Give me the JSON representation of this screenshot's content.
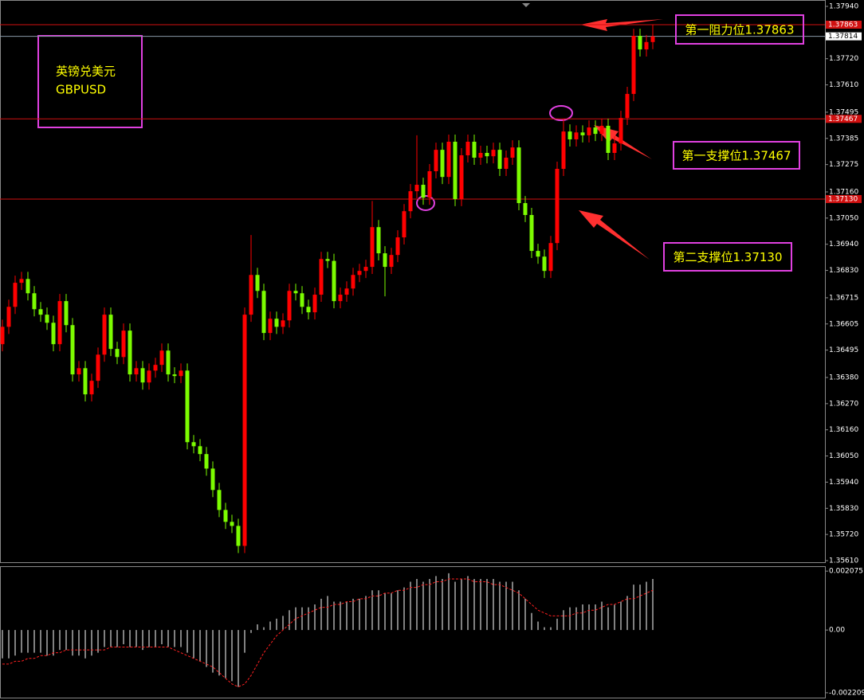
{
  "chart_data": [
    {
      "type": "candlestick",
      "title": "英镑兑美元",
      "subtitle": "GBPUSD",
      "up_color": "#ff0000",
      "down_color": "#7cfc00",
      "open": [
        1.3652,
        1.36593,
        1.36677,
        1.36778,
        1.36794,
        1.36734,
        1.36667,
        1.36644,
        1.3661,
        1.3652,
        1.36701,
        1.366,
        1.36393,
        1.36419,
        1.36309,
        1.36366,
        1.36476,
        1.36644,
        1.365,
        1.36466,
        1.36577,
        1.36393,
        1.36419,
        1.36359,
        1.36409,
        1.36433,
        1.36493,
        1.36393,
        1.36386,
        1.36409,
        1.36108,
        1.36091,
        1.36058,
        1.35997,
        1.35907,
        1.35823,
        1.35773,
        1.35756,
        1.35672,
        1.36644,
        1.36811,
        1.36744,
        1.36567,
        1.36627,
        1.36593,
        1.3662,
        1.36744,
        1.36734,
        1.36677,
        1.36654,
        1.36728,
        1.36878,
        1.3687,
        1.36701,
        1.36728,
        1.36754,
        1.36811,
        1.36828,
        1.36845,
        1.37012,
        1.36902,
        1.36845,
        1.36895,
        1.36969,
        1.37079,
        1.37163,
        1.3719,
        1.37136,
        1.37247,
        1.37337,
        1.37223,
        1.37371,
        1.3713,
        1.37314,
        1.37371,
        1.37304,
        1.37324,
        1.3731,
        1.37337,
        1.37257,
        1.37304,
        1.37347,
        1.37113,
        1.37063,
        1.36912,
        1.36888,
        1.36828,
        1.36945,
        1.37257,
        1.37414,
        1.37381,
        1.3741,
        1.37398,
        1.37431,
        1.37404,
        1.37438,
        1.37324,
        1.37364,
        1.37471,
        1.37572,
        1.37816,
        1.37759,
        1.3779
      ],
      "high": [
        1.36623,
        1.36707,
        1.36808,
        1.36824,
        1.36824,
        1.36764,
        1.36697,
        1.36674,
        1.3664,
        1.36731,
        1.36731,
        1.3663,
        1.36449,
        1.36449,
        1.36396,
        1.36506,
        1.36674,
        1.36674,
        1.3653,
        1.36607,
        1.36607,
        1.36449,
        1.36449,
        1.36439,
        1.36463,
        1.36523,
        1.36523,
        1.36423,
        1.36439,
        1.36439,
        1.36138,
        1.36121,
        1.36088,
        1.36027,
        1.35937,
        1.35853,
        1.35803,
        1.35786,
        1.36674,
        1.36979,
        1.36841,
        1.36774,
        1.36657,
        1.36657,
        1.3665,
        1.36774,
        1.36774,
        1.36764,
        1.36707,
        1.36758,
        1.36908,
        1.36908,
        1.369,
        1.36758,
        1.36784,
        1.36841,
        1.36858,
        1.36875,
        1.37122,
        1.37042,
        1.36932,
        1.36925,
        1.36999,
        1.37109,
        1.37193,
        1.37398,
        1.3722,
        1.37277,
        1.37367,
        1.37367,
        1.37401,
        1.37401,
        1.37344,
        1.37401,
        1.37401,
        1.37354,
        1.37354,
        1.37367,
        1.37367,
        1.37334,
        1.37377,
        1.37377,
        1.37143,
        1.37093,
        1.36942,
        1.36918,
        1.36975,
        1.37287,
        1.37467,
        1.37444,
        1.3744,
        1.3744,
        1.37461,
        1.37461,
        1.37468,
        1.37468,
        1.37394,
        1.37501,
        1.37602,
        1.37846,
        1.37846,
        1.3782,
        1.37863
      ],
      "low": [
        1.3649,
        1.36563,
        1.36647,
        1.36748,
        1.36704,
        1.36637,
        1.36614,
        1.3658,
        1.3649,
        1.3649,
        1.3657,
        1.36363,
        1.36363,
        1.36279,
        1.36279,
        1.36336,
        1.36446,
        1.3647,
        1.36436,
        1.36436,
        1.36363,
        1.36363,
        1.36329,
        1.36329,
        1.36379,
        1.36403,
        1.36363,
        1.36356,
        1.36356,
        1.36078,
        1.36061,
        1.36028,
        1.35967,
        1.35877,
        1.35793,
        1.35743,
        1.35726,
        1.35642,
        1.35642,
        1.36614,
        1.36714,
        1.36537,
        1.36537,
        1.36563,
        1.36563,
        1.3659,
        1.36704,
        1.36647,
        1.36624,
        1.36624,
        1.36698,
        1.3684,
        1.36671,
        1.36671,
        1.36698,
        1.36724,
        1.36781,
        1.36798,
        1.36815,
        1.36872,
        1.36721,
        1.36815,
        1.36865,
        1.36939,
        1.37049,
        1.37133,
        1.37106,
        1.37106,
        1.37217,
        1.37193,
        1.37193,
        1.371,
        1.371,
        1.37284,
        1.37274,
        1.37274,
        1.3728,
        1.3728,
        1.37227,
        1.37227,
        1.37274,
        1.37083,
        1.37033,
        1.36882,
        1.36858,
        1.36798,
        1.36798,
        1.36915,
        1.37227,
        1.37351,
        1.37351,
        1.37368,
        1.37368,
        1.37374,
        1.37374,
        1.37294,
        1.37294,
        1.37334,
        1.37441,
        1.37542,
        1.37729,
        1.37729,
        1.3776
      ],
      "close": [
        1.36593,
        1.36677,
        1.36778,
        1.36794,
        1.36734,
        1.36667,
        1.36644,
        1.3661,
        1.3652,
        1.36701,
        1.366,
        1.36393,
        1.36419,
        1.36309,
        1.36366,
        1.36476,
        1.36644,
        1.365,
        1.36466,
        1.36577,
        1.36393,
        1.36419,
        1.36359,
        1.36409,
        1.36433,
        1.36493,
        1.36393,
        1.36386,
        1.36409,
        1.36108,
        1.36091,
        1.36058,
        1.35997,
        1.35907,
        1.35823,
        1.35773,
        1.35756,
        1.35672,
        1.36644,
        1.36811,
        1.36744,
        1.36567,
        1.36627,
        1.36593,
        1.3662,
        1.36744,
        1.36734,
        1.36677,
        1.36654,
        1.36728,
        1.36878,
        1.3687,
        1.36701,
        1.36728,
        1.36754,
        1.36811,
        1.36828,
        1.36845,
        1.37012,
        1.36902,
        1.36845,
        1.36895,
        1.36969,
        1.37079,
        1.37163,
        1.3719,
        1.37136,
        1.37247,
        1.37337,
        1.37223,
        1.37371,
        1.3713,
        1.37314,
        1.37371,
        1.37304,
        1.37324,
        1.3731,
        1.37337,
        1.37257,
        1.37304,
        1.37347,
        1.37113,
        1.37063,
        1.36912,
        1.36888,
        1.36828,
        1.36945,
        1.37257,
        1.37414,
        1.37381,
        1.3741,
        1.37398,
        1.37431,
        1.37404,
        1.37438,
        1.37324,
        1.37364,
        1.37471,
        1.37572,
        1.37816,
        1.37759,
        1.3779,
        1.37814
      ],
      "ylim": [
        1.3561,
        1.3794
      ],
      "yticks": [
        {
          "value": 1.3794,
          "label": "1.37940"
        },
        {
          "value": 1.3772,
          "label": "1.37720"
        },
        {
          "value": 1.3761,
          "label": "1.37610"
        },
        1.37495,
        1.37385,
        1.37275,
        {
          "value": 1.3716,
          "label": "1.37160"
        },
        {
          "value": 1.3705,
          "label": "1.37050"
        },
        {
          "value": 1.3694,
          "label": "1.36940"
        },
        {
          "value": 1.3683,
          "label": "1.36830"
        },
        1.36715,
        1.36605,
        1.36495,
        {
          "value": 1.3638,
          "label": "1.36380"
        },
        {
          "value": 1.3627,
          "label": "1.36270"
        },
        {
          "value": 1.3616,
          "label": "1.36160"
        },
        {
          "value": 1.3605,
          "label": "1.36050"
        },
        {
          "value": 1.3594,
          "label": "1.35940"
        },
        {
          "value": 1.3583,
          "label": "1.35830"
        },
        {
          "value": 1.3572,
          "label": "1.35720"
        },
        {
          "value": 1.3561,
          "label": "1.35610"
        }
      ],
      "levels": [
        1.37863,
        1.37467,
        {
          "value": 1.3713,
          "label": "1.37130"
        }
      ],
      "level_color": "#d01010",
      "current_price": 1.37814,
      "annotations": [
        "第一阻力位1.37863",
        "第一支撑位1.37467",
        "第二支撑位1.37130"
      ]
    },
    {
      "type": "macd",
      "series": [
        {
          "color": "#ffffff",
          "values": [
            -0.001,
            -0.001,
            -0.0009,
            -0.0008,
            -0.0008,
            -0.0008,
            -0.0008,
            -0.0009,
            -0.0009,
            -0.0007,
            -0.0007,
            -0.0009,
            -0.0009,
            -0.001,
            -0.0009,
            -0.0008,
            -0.0006,
            -0.0006,
            -0.0006,
            -0.0005,
            -0.0006,
            -0.0006,
            -0.0007,
            -0.0006,
            -0.0006,
            -0.0005,
            -0.0006,
            -0.0006,
            -0.0006,
            -0.0008,
            -0.001,
            -0.0011,
            -0.0013,
            -0.0015,
            -0.0016,
            -0.0017,
            -0.0018,
            -0.002,
            -0.0008,
            -0.0001,
            0.0002,
            0.0001,
            0.0003,
            0.0004,
            0.0005,
            0.0007,
            0.0008,
            0.0008,
            0.0008,
            0.0009,
            0.0011,
            0.0012,
            0.001,
            0.001,
            0.001,
            0.0011,
            0.0011,
            0.0012,
            0.0014,
            0.0014,
            0.0013,
            0.0013,
            0.0014,
            0.0015,
            0.0017,
            0.0018,
            0.0017,
            0.0018,
            0.0019,
            0.0018,
            0.002,
            0.0017,
            0.0018,
            0.0019,
            0.0018,
            0.0018,
            0.0018,
            0.0018,
            0.0017,
            0.0017,
            0.0017,
            0.0014,
            0.0011,
            0.0006,
            0.0003,
            0.0001,
            0.0001,
            0.0004,
            0.0007,
            0.0008,
            0.0008,
            0.0009,
            0.0009,
            0.0009,
            0.001,
            0.0008,
            0.0009,
            0.001,
            0.0012,
            0.0016,
            0.0016,
            0.0017,
            0.0018
          ]
        },
        {
          "color": "#ff2020",
          "dashed": true,
          "values": [
            -0.0012,
            -0.0012,
            -0.0011,
            -0.0011,
            -0.001,
            -0.001,
            -0.0009,
            -0.0009,
            -0.0008,
            -0.0008,
            -0.0007,
            -0.0007,
            -0.0007,
            -0.0007,
            -0.0007,
            -0.0007,
            -0.0007,
            -0.0006,
            -0.0006,
            -0.0006,
            -0.0006,
            -0.0006,
            -0.0006,
            -0.0006,
            -0.0006,
            -0.0006,
            -0.0006,
            -0.0007,
            -0.0008,
            -0.0009,
            -0.001,
            -0.0011,
            -0.0012,
            -0.0013,
            -0.0015,
            -0.0017,
            -0.0019,
            -0.002,
            -0.0019,
            -0.0016,
            -0.0012,
            -0.0008,
            -0.0005,
            -0.0002,
            0,
            0.0002,
            0.0004,
            0.0005,
            0.0006,
            0.0007,
            0.0008,
            0.0008,
            0.0009,
            0.0009,
            0.001,
            0.001,
            0.0011,
            0.0011,
            0.0012,
            0.0012,
            0.0013,
            0.0013,
            0.0014,
            0.0014,
            0.0015,
            0.0015,
            0.0016,
            0.0016,
            0.0017,
            0.0017,
            0.0018,
            0.0018,
            0.0018,
            0.0018,
            0.0017,
            0.0017,
            0.0017,
            0.0016,
            0.0016,
            0.0015,
            0.0014,
            0.0013,
            0.0011,
            0.0009,
            0.0007,
            0.0006,
            0.0005,
            0.0005,
            0.0005,
            0.0005,
            0.0006,
            0.0006,
            0.0007,
            0.0007,
            0.0008,
            0.0009,
            0.0009,
            0.001,
            0.0011,
            0.0011,
            0.0012,
            0.0013,
            0.0014
          ]
        }
      ],
      "ylim": [
        -0.00238,
        0.00222
      ],
      "yticks": [
        0.002075,
        {
          "value": 0,
          "label": "0.00"
        },
        -0.002209
      ]
    }
  ]
}
